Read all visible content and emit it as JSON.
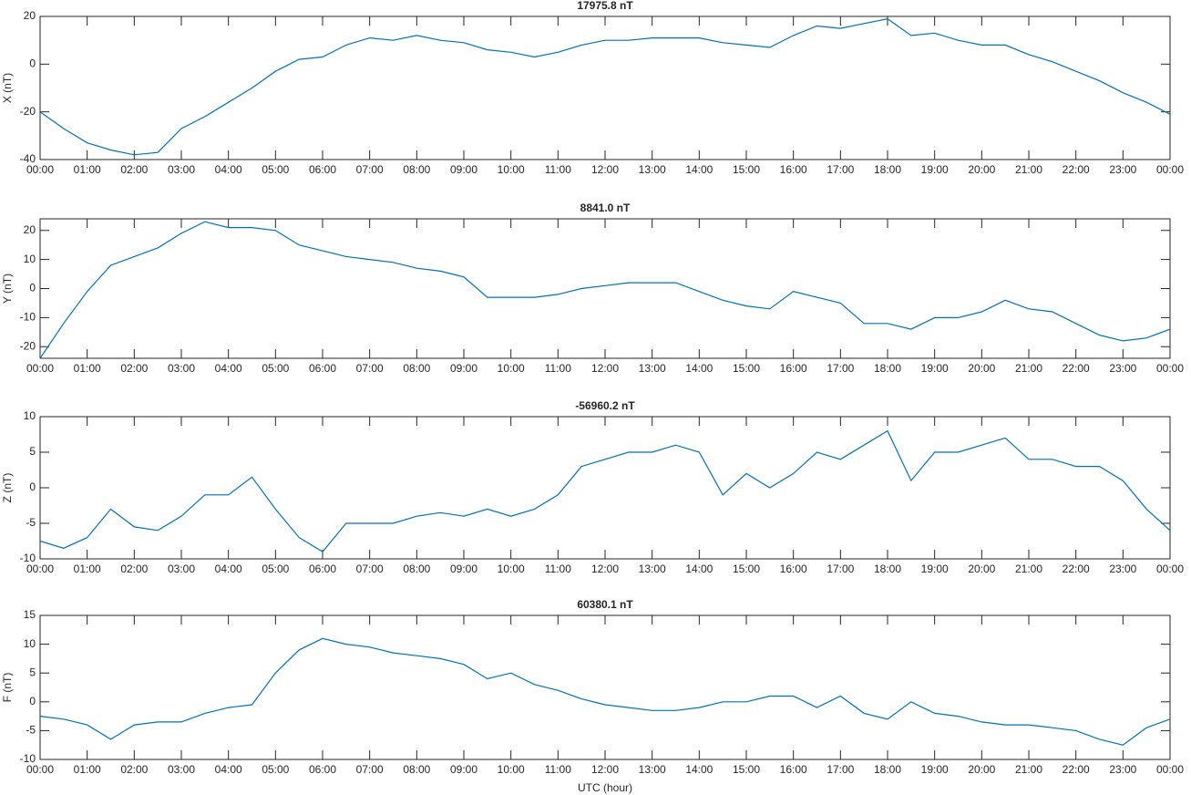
{
  "chart_data": [
    {
      "type": "line",
      "title": "17975.8 nT",
      "ylabel": "X (nT)",
      "color": "#0072bd",
      "x": [
        0,
        0.5,
        1,
        1.5,
        2,
        2.5,
        3,
        3.5,
        4,
        4.5,
        5,
        5.5,
        6,
        6.5,
        7,
        7.5,
        8,
        8.5,
        9,
        9.5,
        10,
        10.5,
        11,
        11.5,
        12,
        12.5,
        13,
        13.5,
        14,
        14.5,
        15,
        15.5,
        16,
        16.5,
        17,
        17.5,
        18,
        18.5,
        19,
        19.5,
        20,
        20.5,
        21,
        21.5,
        22,
        22.5,
        23,
        23.5,
        24
      ],
      "values": [
        -20,
        -27,
        -33,
        -36,
        -38,
        -37,
        -27,
        -22,
        -16,
        -10,
        -3,
        2,
        3,
        8,
        11,
        10,
        12,
        10,
        9,
        6,
        5,
        3,
        5,
        8,
        10,
        10,
        11,
        11,
        11,
        9,
        8,
        7,
        12,
        16,
        15,
        17,
        19,
        12,
        13,
        10,
        8,
        8,
        4,
        1,
        -3,
        -7,
        -12,
        -16,
        -21
      ],
      "xlim": [
        0,
        24
      ],
      "ylim": [
        -40,
        20
      ],
      "yticks": [
        -40,
        -20,
        0,
        20
      ],
      "xticks": [
        {
          "value": 0,
          "label": "00:00"
        },
        {
          "value": 1,
          "label": "01:00"
        },
        {
          "value": 2,
          "label": "02:00"
        },
        {
          "value": 3,
          "label": "03:00"
        },
        {
          "value": 4,
          "label": "04:00"
        },
        {
          "value": 5,
          "label": "05:00"
        },
        {
          "value": 6,
          "label": "06:00"
        },
        {
          "value": 7,
          "label": "07:00"
        },
        {
          "value": 8,
          "label": "08:00"
        },
        {
          "value": 9,
          "label": "09:00"
        },
        {
          "value": 10,
          "label": "10:00"
        },
        {
          "value": 11,
          "label": "11:00"
        },
        {
          "value": 12,
          "label": "12:00"
        },
        {
          "value": 13,
          "label": "13:00"
        },
        {
          "value": 14,
          "label": "14:00"
        },
        {
          "value": 15,
          "label": "15:00"
        },
        {
          "value": 16,
          "label": "16:00"
        },
        {
          "value": 17,
          "label": "17:00"
        },
        {
          "value": 18,
          "label": "18:00"
        },
        {
          "value": 19,
          "label": "19:00"
        },
        {
          "value": 20,
          "label": "20:00"
        },
        {
          "value": 21,
          "label": "21:00"
        },
        {
          "value": 22,
          "label": "22:00"
        },
        {
          "value": 23,
          "label": "23:00"
        },
        {
          "value": 24,
          "label": "00:00"
        }
      ]
    },
    {
      "type": "line",
      "title": "8841.0 nT",
      "ylabel": "Y (nT)",
      "color": "#0072bd",
      "x": [
        0,
        0.5,
        1,
        1.5,
        2,
        2.5,
        3,
        3.5,
        4,
        4.5,
        5,
        5.5,
        6,
        6.5,
        7,
        7.5,
        8,
        8.5,
        9,
        9.5,
        10,
        10.5,
        11,
        11.5,
        12,
        12.5,
        13,
        13.5,
        14,
        14.5,
        15,
        15.5,
        16,
        16.5,
        17,
        17.5,
        18,
        18.5,
        19,
        19.5,
        20,
        20.5,
        21,
        21.5,
        22,
        22.5,
        23,
        23.5,
        24
      ],
      "values": [
        -24,
        -12,
        -1,
        8,
        11,
        14,
        19,
        23,
        21,
        21,
        20,
        15,
        13,
        11,
        10,
        9,
        7,
        6,
        4,
        -3,
        -3,
        -3,
        -2,
        0,
        1,
        2,
        2,
        2,
        -1,
        -4,
        -6,
        -7,
        -1,
        -3,
        -5,
        -12,
        -12,
        -14,
        -10,
        -10,
        -8,
        -4,
        -7,
        -8,
        -12,
        -16,
        -18,
        -17,
        -14
      ],
      "xlim": [
        0,
        24
      ],
      "ylim": [
        -24,
        24
      ],
      "yticks": [
        -20,
        -10,
        0,
        10,
        20
      ],
      "xticks": [
        {
          "value": 0,
          "label": "00:00"
        },
        {
          "value": 1,
          "label": "01:00"
        },
        {
          "value": 2,
          "label": "02:00"
        },
        {
          "value": 3,
          "label": "03:00"
        },
        {
          "value": 4,
          "label": "04:00"
        },
        {
          "value": 5,
          "label": "05:00"
        },
        {
          "value": 6,
          "label": "06:00"
        },
        {
          "value": 7,
          "label": "07:00"
        },
        {
          "value": 8,
          "label": "08:00"
        },
        {
          "value": 9,
          "label": "09:00"
        },
        {
          "value": 10,
          "label": "10:00"
        },
        {
          "value": 11,
          "label": "11:00"
        },
        {
          "value": 12,
          "label": "12:00"
        },
        {
          "value": 13,
          "label": "13:00"
        },
        {
          "value": 14,
          "label": "14:00"
        },
        {
          "value": 15,
          "label": "15:00"
        },
        {
          "value": 16,
          "label": "16:00"
        },
        {
          "value": 17,
          "label": "17:00"
        },
        {
          "value": 18,
          "label": "18:00"
        },
        {
          "value": 19,
          "label": "19:00"
        },
        {
          "value": 20,
          "label": "20:00"
        },
        {
          "value": 21,
          "label": "21:00"
        },
        {
          "value": 22,
          "label": "22:00"
        },
        {
          "value": 23,
          "label": "23:00"
        },
        {
          "value": 24,
          "label": "00:00"
        }
      ]
    },
    {
      "type": "line",
      "title": "-56960.2 nT",
      "ylabel": "Z (nT)",
      "color": "#0072bd",
      "x": [
        0,
        0.5,
        1,
        1.5,
        2,
        2.5,
        3,
        3.5,
        4,
        4.5,
        5,
        5.5,
        6,
        6.5,
        7,
        7.5,
        8,
        8.5,
        9,
        9.5,
        10,
        10.5,
        11,
        11.5,
        12,
        12.5,
        13,
        13.5,
        14,
        14.5,
        15,
        15.5,
        16,
        16.5,
        17,
        17.5,
        18,
        18.5,
        19,
        19.5,
        20,
        20.5,
        21,
        21.5,
        22,
        22.5,
        23,
        23.5,
        24
      ],
      "values": [
        -7.5,
        -8.5,
        -7,
        -3,
        -5.5,
        -6,
        -4,
        -1,
        -1,
        1.5,
        -3,
        -7,
        -9,
        -5,
        -5,
        -5,
        -4,
        -3.5,
        -4,
        -3,
        -4,
        -3,
        -1,
        3,
        4,
        5,
        5,
        6,
        5,
        -1,
        2,
        0,
        2,
        5,
        4,
        6,
        8,
        1,
        5,
        5,
        6,
        7,
        4,
        4,
        3,
        3,
        1,
        -3,
        -6
      ],
      "xlim": [
        0,
        24
      ],
      "ylim": [
        -10,
        10
      ],
      "yticks": [
        -10,
        -5,
        0,
        5,
        10
      ],
      "xticks": [
        {
          "value": 0,
          "label": "00:00"
        },
        {
          "value": 1,
          "label": "01:00"
        },
        {
          "value": 2,
          "label": "02:00"
        },
        {
          "value": 3,
          "label": "03:00"
        },
        {
          "value": 4,
          "label": "04:00"
        },
        {
          "value": 5,
          "label": "05:00"
        },
        {
          "value": 6,
          "label": "06:00"
        },
        {
          "value": 7,
          "label": "07:00"
        },
        {
          "value": 8,
          "label": "08:00"
        },
        {
          "value": 9,
          "label": "09:00"
        },
        {
          "value": 10,
          "label": "10:00"
        },
        {
          "value": 11,
          "label": "11:00"
        },
        {
          "value": 12,
          "label": "12:00"
        },
        {
          "value": 13,
          "label": "13:00"
        },
        {
          "value": 14,
          "label": "14:00"
        },
        {
          "value": 15,
          "label": "15:00"
        },
        {
          "value": 16,
          "label": "16:00"
        },
        {
          "value": 17,
          "label": "17:00"
        },
        {
          "value": 18,
          "label": "18:00"
        },
        {
          "value": 19,
          "label": "19:00"
        },
        {
          "value": 20,
          "label": "20:00"
        },
        {
          "value": 21,
          "label": "21:00"
        },
        {
          "value": 22,
          "label": "22:00"
        },
        {
          "value": 23,
          "label": "23:00"
        },
        {
          "value": 24,
          "label": "00:00"
        }
      ]
    },
    {
      "type": "line",
      "title": "60380.1 nT",
      "ylabel": "F (nT)",
      "xlabel": "UTC (hour)",
      "color": "#0072bd",
      "x": [
        0,
        0.5,
        1,
        1.5,
        2,
        2.5,
        3,
        3.5,
        4,
        4.5,
        5,
        5.5,
        6,
        6.5,
        7,
        7.5,
        8,
        8.5,
        9,
        9.5,
        10,
        10.5,
        11,
        11.5,
        12,
        12.5,
        13,
        13.5,
        14,
        14.5,
        15,
        15.5,
        16,
        16.5,
        17,
        17.5,
        18,
        18.5,
        19,
        19.5,
        20,
        20.5,
        21,
        21.5,
        22,
        22.5,
        23,
        23.5,
        24
      ],
      "values": [
        -2.5,
        -3,
        -4,
        -6.5,
        -4,
        -3.5,
        -3.5,
        -2,
        -1,
        -0.5,
        5,
        9,
        11,
        10,
        9.5,
        8.5,
        8,
        7.5,
        6.5,
        4,
        5,
        3,
        2,
        0.5,
        -0.5,
        -1,
        -1.5,
        -1.5,
        -1,
        0,
        0,
        1,
        1,
        -1,
        1,
        -2,
        -3,
        0,
        -2,
        -2.5,
        -3.5,
        -4,
        -4,
        -4.5,
        -5,
        -6.5,
        -7.5,
        -4.5,
        -3
      ],
      "xlim": [
        0,
        24
      ],
      "ylim": [
        -10,
        15
      ],
      "yticks": [
        -10,
        -5,
        0,
        5,
        10,
        15
      ],
      "xticks": [
        {
          "value": 0,
          "label": "00:00"
        },
        {
          "value": 1,
          "label": "01:00"
        },
        {
          "value": 2,
          "label": "02:00"
        },
        {
          "value": 3,
          "label": "03:00"
        },
        {
          "value": 4,
          "label": "04:00"
        },
        {
          "value": 5,
          "label": "05:00"
        },
        {
          "value": 6,
          "label": "06:00"
        },
        {
          "value": 7,
          "label": "07:00"
        },
        {
          "value": 8,
          "label": "08:00"
        },
        {
          "value": 9,
          "label": "09:00"
        },
        {
          "value": 10,
          "label": "10:00"
        },
        {
          "value": 11,
          "label": "11:00"
        },
        {
          "value": 12,
          "label": "12:00"
        },
        {
          "value": 13,
          "label": "13:00"
        },
        {
          "value": 14,
          "label": "14:00"
        },
        {
          "value": 15,
          "label": "15:00"
        },
        {
          "value": 16,
          "label": "16:00"
        },
        {
          "value": 17,
          "label": "17:00"
        },
        {
          "value": 18,
          "label": "18:00"
        },
        {
          "value": 19,
          "label": "19:00"
        },
        {
          "value": 20,
          "label": "20:00"
        },
        {
          "value": 21,
          "label": "21:00"
        },
        {
          "value": 22,
          "label": "22:00"
        },
        {
          "value": 23,
          "label": "23:00"
        },
        {
          "value": 24,
          "label": "00:00"
        }
      ]
    }
  ]
}
